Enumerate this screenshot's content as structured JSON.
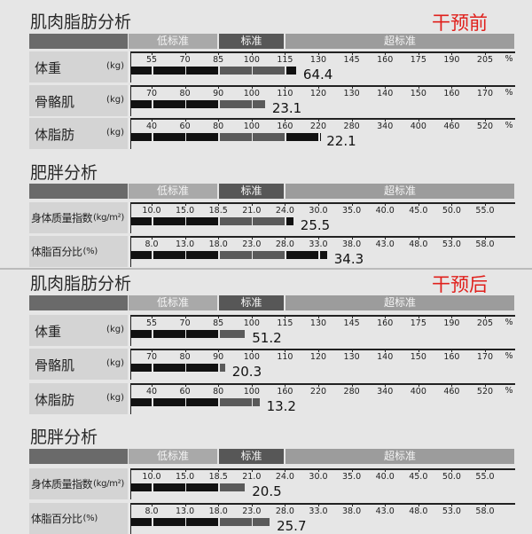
{
  "colors": {
    "header_left": "#6a6a6a",
    "low": "#a9a9a9",
    "standard": "#575757",
    "over": "#9c9c9c",
    "bar_dark": "#111111",
    "bar_gray": "#5a5a5a",
    "tag": "#e0201c"
  },
  "band_labels": {
    "low": "低标准",
    "standard": "标准",
    "over": "超标准"
  },
  "scales": {
    "weight": [
      "55",
      "70",
      "85",
      "100",
      "115",
      "130",
      "145",
      "160",
      "175",
      "190",
      "205"
    ],
    "muscle": [
      "70",
      "80",
      "90",
      "100",
      "110",
      "120",
      "130",
      "140",
      "150",
      "160",
      "170"
    ],
    "fat": [
      "40",
      "60",
      "80",
      "100",
      "160",
      "220",
      "280",
      "340",
      "400",
      "460",
      "520"
    ],
    "bmi": [
      "10.0",
      "15.0",
      "18.5",
      "21.0",
      "24.0",
      "30.0",
      "35.0",
      "40.0",
      "45.0",
      "50.0",
      "55.0"
    ],
    "pbf": [
      "8.0",
      "13.0",
      "18.0",
      "23.0",
      "28.0",
      "33.0",
      "38.0",
      "43.0",
      "48.0",
      "53.0",
      "58.0"
    ]
  },
  "panels": [
    {
      "tag": "干预前",
      "muscle_fat": {
        "title": "肌肉脂肪分析",
        "rows": [
          {
            "label": "体重",
            "unit": "(kg)",
            "scale": "weight",
            "pct": "%",
            "bar_end": 120,
            "value": "64.4"
          },
          {
            "label": "骨骼肌",
            "unit": "(kg)",
            "scale": "muscle",
            "pct": "%",
            "bar_end": 104,
            "value": "23.1"
          },
          {
            "label": "体脂肪",
            "unit": "(kg)",
            "scale": "fat",
            "pct": "%",
            "bar_end": 222,
            "value": "22.1"
          }
        ]
      },
      "obesity": {
        "title": "肥胖分析",
        "rows": [
          {
            "label": "身体质量指数",
            "unit": "(kg/m²)",
            "scale": "bmi",
            "pct": "",
            "bar_end": 25.5,
            "value": "25.5"
          },
          {
            "label": "体脂百分比",
            "unit": "(%)",
            "scale": "pbf",
            "pct": "",
            "bar_end": 34.3,
            "value": "34.3"
          }
        ]
      }
    },
    {
      "tag": "干预后",
      "muscle_fat": {
        "title": "肌肉脂肪分析",
        "rows": [
          {
            "label": "体重",
            "unit": "(kg)",
            "scale": "weight",
            "pct": "%",
            "bar_end": 97,
            "value": "51.2"
          },
          {
            "label": "骨骼肌",
            "unit": "(kg)",
            "scale": "muscle",
            "pct": "%",
            "bar_end": 92,
            "value": "20.3"
          },
          {
            "label": "体脂肪",
            "unit": "(kg)",
            "scale": "fat",
            "pct": "%",
            "bar_end": 114,
            "value": "13.2"
          }
        ]
      },
      "obesity": {
        "title": "肥胖分析",
        "rows": [
          {
            "label": "身体质量指数",
            "unit": "(kg/m²)",
            "scale": "bmi",
            "pct": "",
            "bar_end": 20.5,
            "value": "20.5"
          },
          {
            "label": "体脂百分比",
            "unit": "(%)",
            "scale": "pbf",
            "pct": "",
            "bar_end": 25.7,
            "value": "25.7"
          }
        ]
      }
    }
  ]
}
